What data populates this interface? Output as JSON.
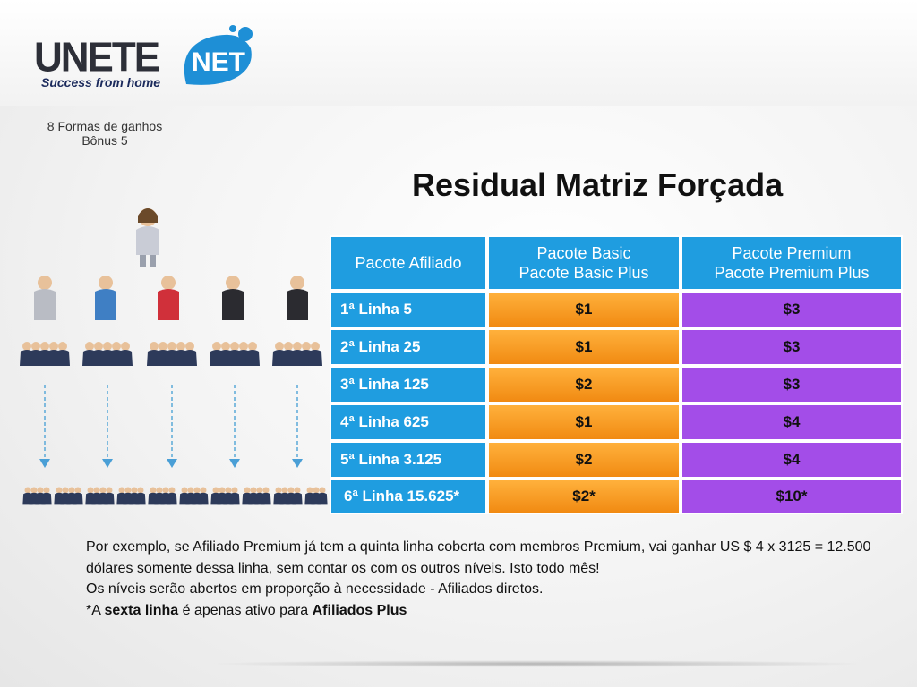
{
  "logo": {
    "word": "UNETE",
    "net": "NET",
    "tagline": "Success from home"
  },
  "caption": {
    "line1": "8 Formas de ganhos",
    "line2": "Bônus 5"
  },
  "title": "Residual Matriz Forçada",
  "table": {
    "header": {
      "col1": "Pacote Afiliado",
      "col2_line1": "Pacote Basic",
      "col2_line2": "Pacote Basic Plus",
      "col3_line1": "Pacote Premium",
      "col3_line2": "Pacote Premium Plus"
    },
    "rows": [
      {
        "level": "1ª Linha 5",
        "basic": "$1",
        "premium": "$3"
      },
      {
        "level": "2ª Linha 25",
        "basic": "$1",
        "premium": "$3"
      },
      {
        "level": "3ª Linha 125",
        "basic": "$2",
        "premium": "$3"
      },
      {
        "level": "4ª Linha 625",
        "basic": "$1",
        "premium": "$4"
      },
      {
        "level": "5ª Linha 3.125",
        "basic": "$2",
        "premium": "$4"
      },
      {
        "level": "6ª Linha 15.625*",
        "basic": "$2*",
        "premium": "$10*"
      }
    ]
  },
  "footnote": {
    "p1": "Por exemplo, se Afiliado Premium já tem a quinta linha coberta com membros Premium, vai ganhar US $ 4 x 3125 = 12.500 dólares somente dessa linha, sem contar os com os outros níveis. Isto todo mês!",
    "p2": "Os níveis serão abertos em proporção à necessidade - Afiliados diretos.",
    "p3_pre": "*A ",
    "p3_bold1": "sexta linha",
    "p3_mid": " é apenas ativo para ",
    "p3_bold2": "Afiliados Plus"
  },
  "colors": {
    "blue": "#1f9de0",
    "orange": "#f39a1e",
    "purple": "#a34de8",
    "arrow": "#4a9fd6"
  }
}
